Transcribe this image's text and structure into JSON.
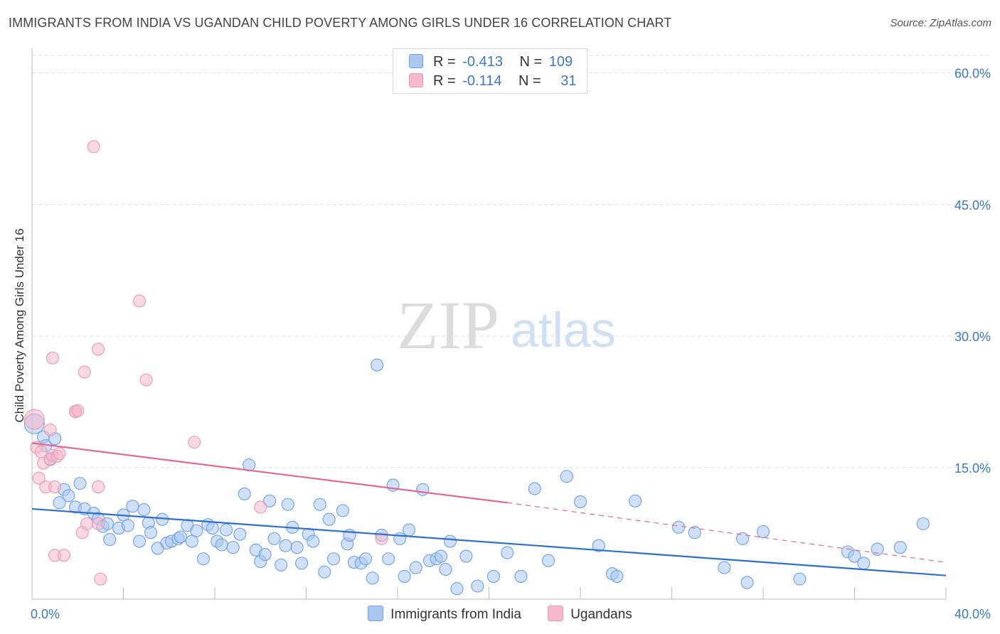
{
  "header": {
    "title": "IMMIGRANTS FROM INDIA VS UGANDAN CHILD POVERTY AMONG GIRLS UNDER 16 CORRELATION CHART",
    "source": "Source: ZipAtlas.com"
  },
  "watermark": {
    "zip": "ZIP",
    "atlas": "atlas"
  },
  "legend_top": {
    "rows": [
      {
        "r_label": "R =",
        "r_value": "-0.413",
        "n_label": "N =",
        "n_value": "109",
        "color": "#aac8f0"
      },
      {
        "r_label": "R =",
        "r_value": "-0.114",
        "n_label": "N =",
        "n_value": "31",
        "color": "#f5b8cc"
      }
    ]
  },
  "chart_data": {
    "type": "scatter",
    "title": "IMMIGRANTS FROM INDIA VS UGANDAN CHILD POVERTY AMONG GIRLS UNDER 16 CORRELATION CHART",
    "xlabel": "",
    "ylabel": "Child Poverty Among Girls Under 16",
    "xlim": [
      0,
      40
    ],
    "ylim": [
      0,
      62
    ],
    "x_tick_labels": [
      "0.0%",
      "40.0%"
    ],
    "y_ticks": [
      15,
      30,
      45,
      60
    ],
    "y_tick_labels": [
      "15.0%",
      "30.0%",
      "45.0%",
      "60.0%"
    ],
    "grid": true,
    "legend_position": "bottom",
    "series": [
      {
        "name": "Immigrants from India",
        "color": "#6fa0e0",
        "fill": "#aac8f0",
        "trend": {
          "x": [
            0,
            40
          ],
          "y": [
            10.3,
            2.7
          ],
          "style": "solid",
          "color": "#2e6fd0"
        },
        "points": [
          [
            0.1,
            20
          ],
          [
            0.5,
            18.5
          ],
          [
            0.8,
            16
          ],
          [
            0.6,
            17.5
          ],
          [
            1.0,
            18.3
          ],
          [
            1.4,
            12.5
          ],
          [
            1.2,
            11
          ],
          [
            1.6,
            11.8
          ],
          [
            2.1,
            13.2
          ],
          [
            1.9,
            10.5
          ],
          [
            2.3,
            10.3
          ],
          [
            2.7,
            9.8
          ],
          [
            2.9,
            9.2
          ],
          [
            3.1,
            8.3
          ],
          [
            3.3,
            8.6
          ],
          [
            3.4,
            6.8
          ],
          [
            3.8,
            8.1
          ],
          [
            4.0,
            9.6
          ],
          [
            4.2,
            8.4
          ],
          [
            4.4,
            10.6
          ],
          [
            4.7,
            6.6
          ],
          [
            4.9,
            10.2
          ],
          [
            5.1,
            8.7
          ],
          [
            5.2,
            7.6
          ],
          [
            5.5,
            5.8
          ],
          [
            5.7,
            9.1
          ],
          [
            5.9,
            6.4
          ],
          [
            6.1,
            6.6
          ],
          [
            6.4,
            6.9
          ],
          [
            6.5,
            7.1
          ],
          [
            6.8,
            8.4
          ],
          [
            7.0,
            6.6
          ],
          [
            7.2,
            7.8
          ],
          [
            7.5,
            4.6
          ],
          [
            7.7,
            8.5
          ],
          [
            7.9,
            8.1
          ],
          [
            8.1,
            6.6
          ],
          [
            8.3,
            6.2
          ],
          [
            8.5,
            7.9
          ],
          [
            8.8,
            5.9
          ],
          [
            9.1,
            7.4
          ],
          [
            9.3,
            12
          ],
          [
            9.5,
            15.3
          ],
          [
            9.8,
            5.6
          ],
          [
            10.0,
            4.3
          ],
          [
            10.2,
            5.1
          ],
          [
            10.4,
            11.2
          ],
          [
            10.6,
            6.9
          ],
          [
            10.9,
            3.9
          ],
          [
            11.1,
            6.1
          ],
          [
            11.2,
            10.8
          ],
          [
            11.4,
            8.2
          ],
          [
            11.6,
            5.9
          ],
          [
            11.8,
            4.1
          ],
          [
            12.1,
            7.4
          ],
          [
            12.3,
            6.6
          ],
          [
            12.6,
            10.8
          ],
          [
            12.8,
            3.1
          ],
          [
            13.0,
            9.1
          ],
          [
            13.2,
            4.6
          ],
          [
            13.6,
            10.1
          ],
          [
            13.8,
            6.3
          ],
          [
            13.9,
            7.3
          ],
          [
            14.1,
            4.2
          ],
          [
            14.4,
            4.1
          ],
          [
            14.6,
            4.6
          ],
          [
            14.9,
            2.4
          ],
          [
            15.1,
            26.7
          ],
          [
            15.3,
            7.3
          ],
          [
            15.6,
            4.6
          ],
          [
            15.8,
            13
          ],
          [
            16.1,
            6.9
          ],
          [
            16.3,
            2.6
          ],
          [
            16.5,
            7.9
          ],
          [
            16.8,
            3.6
          ],
          [
            17.1,
            12.5
          ],
          [
            17.4,
            4.4
          ],
          [
            17.7,
            4.6
          ],
          [
            17.9,
            4.9
          ],
          [
            18.1,
            3.4
          ],
          [
            18.3,
            6.6
          ],
          [
            18.6,
            1.2
          ],
          [
            19.0,
            4.9
          ],
          [
            19.5,
            1.5
          ],
          [
            20.2,
            2.6
          ],
          [
            20.8,
            5.3
          ],
          [
            21.4,
            2.6
          ],
          [
            22.0,
            12.6
          ],
          [
            22.6,
            4.4
          ],
          [
            23.4,
            14
          ],
          [
            24.0,
            11.1
          ],
          [
            24.8,
            6.1
          ],
          [
            25.4,
            2.9
          ],
          [
            25.6,
            2.6
          ],
          [
            26.4,
            11.2
          ],
          [
            28.3,
            8.2
          ],
          [
            29.0,
            7.6
          ],
          [
            30.3,
            3.6
          ],
          [
            31.1,
            6.9
          ],
          [
            31.3,
            1.9
          ],
          [
            32.0,
            7.7
          ],
          [
            33.6,
            2.3
          ],
          [
            35.7,
            5.4
          ],
          [
            36.0,
            4.9
          ],
          [
            36.4,
            4.1
          ],
          [
            37.0,
            5.7
          ],
          [
            38.0,
            5.9
          ],
          [
            39.0,
            8.6
          ]
        ]
      },
      {
        "name": "Ugandans",
        "color": "#e89ab5",
        "fill": "#f5b8cc",
        "trend": {
          "x": [
            0,
            20.8
          ],
          "y": [
            17.8,
            11.0
          ],
          "style": "solid",
          "color": "#e06a96",
          "extension": {
            "x": [
              20.8,
              40
            ],
            "y": [
              11.0,
              4.2
            ],
            "style": "dashed"
          }
        },
        "points": [
          [
            0.1,
            20.5
          ],
          [
            0.2,
            17.3
          ],
          [
            0.4,
            16.8
          ],
          [
            0.3,
            13.8
          ],
          [
            0.5,
            15.5
          ],
          [
            0.6,
            12.8
          ],
          [
            0.8,
            15.9
          ],
          [
            0.9,
            16.4
          ],
          [
            1.0,
            12.8
          ],
          [
            0.8,
            19.3
          ],
          [
            1.1,
            16.3
          ],
          [
            1.2,
            16.6
          ],
          [
            0.9,
            27.5
          ],
          [
            1.0,
            5.0
          ],
          [
            1.4,
            5.0
          ],
          [
            1.9,
            21.4
          ],
          [
            1.9,
            21.4
          ],
          [
            2.0,
            21.5
          ],
          [
            2.2,
            7.6
          ],
          [
            2.4,
            8.6
          ],
          [
            2.3,
            25.9
          ],
          [
            2.9,
            8.6
          ],
          [
            2.9,
            12.8
          ],
          [
            3.0,
            2.3
          ],
          [
            2.7,
            51.6
          ],
          [
            4.7,
            34
          ],
          [
            5.0,
            25.0
          ],
          [
            7.1,
            17.9
          ],
          [
            10.0,
            10.5
          ],
          [
            15.3,
            6.9
          ],
          [
            2.9,
            28.5
          ]
        ]
      }
    ]
  },
  "bottom_legend": {
    "items": [
      {
        "label": "Immigrants from India",
        "color": "#aac8f0",
        "border": "#6fa0e0"
      },
      {
        "label": "Ugandans",
        "color": "#f5b8cc",
        "border": "#e89ab5"
      }
    ]
  }
}
